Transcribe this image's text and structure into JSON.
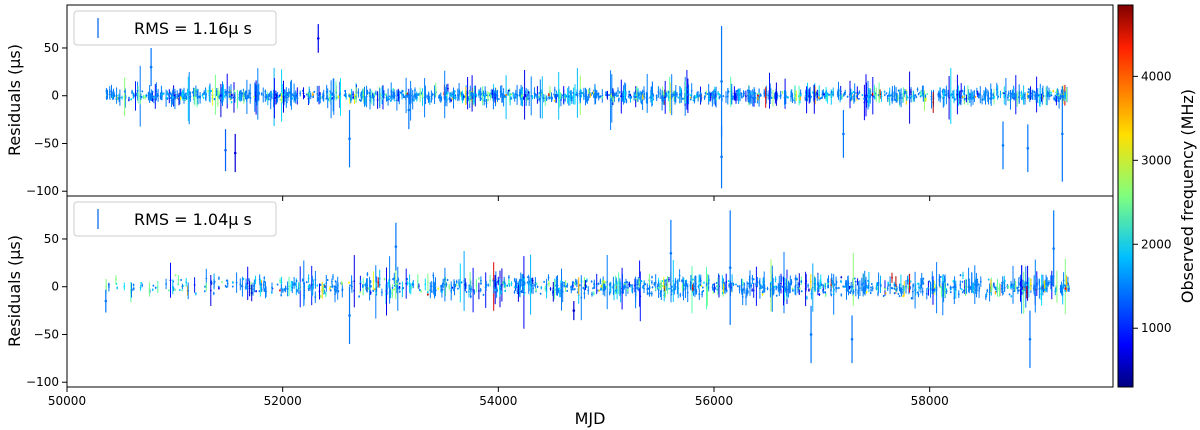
{
  "chart_data": {
    "type": "scatter",
    "xlabel": "MJD",
    "xlim": [
      50000,
      59700
    ],
    "x_ticks": [
      50000,
      52000,
      54000,
      56000,
      58000
    ],
    "colorbar": {
      "label": "Observed frequency (MHz)",
      "range": [
        300,
        4850
      ],
      "ticks": [
        1000,
        2000,
        3000,
        4000
      ],
      "colormap": "jet"
    },
    "panels": [
      {
        "ylabel": "Residuals (μs)",
        "ylim": [
          -105,
          95
        ],
        "y_ticks": [
          -100,
          -50,
          0,
          50
        ],
        "legend_label": "RMS = 1.16μ s",
        "legend_position": "upper-left",
        "seed": 7,
        "x_start": 50360,
        "x_end": 59300,
        "density_start": 1.0,
        "spread": [
          4,
          6
        ],
        "notable_points": [
          {
            "x": 52330,
            "y": 60,
            "err": 15,
            "freq": 800
          },
          {
            "x": 56070,
            "y": 15,
            "err": 58,
            "freq": 1400
          },
          {
            "x": 56070,
            "y": -64,
            "err": 33,
            "freq": 1400
          },
          {
            "x": 51470,
            "y": -57,
            "err": 22,
            "freq": 1300
          },
          {
            "x": 51560,
            "y": -60,
            "err": 20,
            "freq": 700
          },
          {
            "x": 52620,
            "y": -45,
            "err": 30,
            "freq": 1400
          },
          {
            "x": 57200,
            "y": -40,
            "err": 25,
            "freq": 1400
          },
          {
            "x": 58680,
            "y": -52,
            "err": 25,
            "freq": 1400
          },
          {
            "x": 58910,
            "y": -55,
            "err": 25,
            "freq": 1400
          },
          {
            "x": 59230,
            "y": -40,
            "err": 50,
            "freq": 1400
          },
          {
            "x": 50780,
            "y": 30,
            "err": 20,
            "freq": 1400
          },
          {
            "x": 53170,
            "y": -15,
            "err": 20,
            "freq": 1400
          }
        ]
      },
      {
        "ylabel": "Residuals (μs)",
        "ylim": [
          -105,
          95
        ],
        "y_ticks": [
          -100,
          -50,
          0,
          50
        ],
        "legend_label": "RMS = 1.04μ s",
        "legend_position": "upper-left",
        "seed": 13,
        "x_start": 50360,
        "x_end": 59300,
        "density_start": 0.25,
        "spread": [
          7,
          10
        ],
        "notable_points": [
          {
            "x": 53050,
            "y": 42,
            "err": 25,
            "freq": 1400
          },
          {
            "x": 55600,
            "y": 35,
            "err": 35,
            "freq": 1400
          },
          {
            "x": 56150,
            "y": 20,
            "err": 60,
            "freq": 1400
          },
          {
            "x": 59150,
            "y": 40,
            "err": 40,
            "freq": 1400
          },
          {
            "x": 58930,
            "y": -55,
            "err": 30,
            "freq": 1400
          },
          {
            "x": 57280,
            "y": -55,
            "err": 25,
            "freq": 1400
          },
          {
            "x": 56900,
            "y": -50,
            "err": 30,
            "freq": 1400
          },
          {
            "x": 54700,
            "y": -25,
            "err": 10,
            "freq": 700
          },
          {
            "x": 50360,
            "y": -15,
            "err": 12,
            "freq": 1400
          },
          {
            "x": 52620,
            "y": -30,
            "err": 30,
            "freq": 1400
          }
        ]
      }
    ]
  }
}
